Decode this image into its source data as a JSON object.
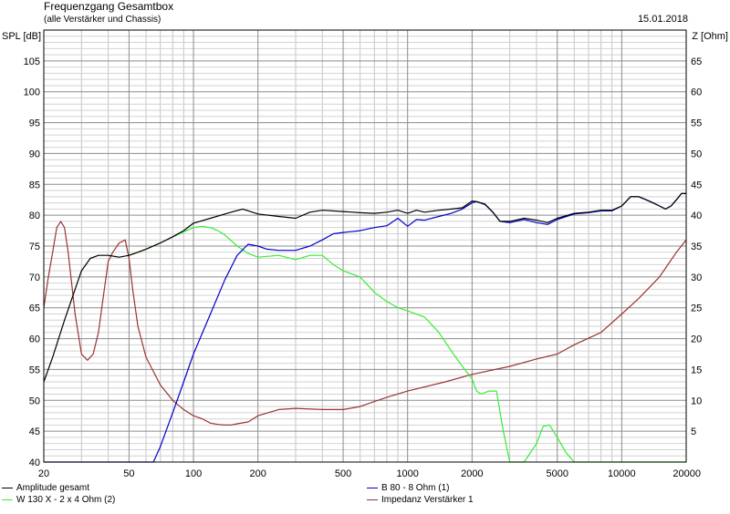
{
  "header": {
    "title": "Frequenzgang Gesamtbox",
    "subtitle": "(alle Verstärker und Chassis)",
    "date": "15.01.2018"
  },
  "chart_data": {
    "type": "line",
    "x_scale": "log",
    "xlim": [
      20,
      20000
    ],
    "ylim_left": [
      40,
      110
    ],
    "ylim_right": [
      0,
      70
    ],
    "ylabel_left": "SPL [dB]",
    "ylabel_right": "Z [Ohm]",
    "x_ticks": [
      20,
      50,
      100,
      200,
      500,
      1000,
      2000,
      5000,
      10000,
      20000
    ],
    "x_tick_labels": [
      "20",
      "50",
      "100",
      "200",
      "500",
      "1000",
      "2000",
      "5000",
      "10000",
      "20000"
    ],
    "y_ticks_left": [
      40,
      45,
      50,
      55,
      60,
      65,
      70,
      75,
      80,
      85,
      90,
      95,
      100,
      105
    ],
    "y_ticks_right": [
      5,
      10,
      15,
      20,
      25,
      30,
      35,
      40,
      45,
      50,
      55,
      60,
      65
    ],
    "grid": true,
    "legend_placement": "bottom",
    "series": [
      {
        "name": "Amplitude gesamt",
        "color": "#000000",
        "axis": "left",
        "x": [
          20,
          22,
          25,
          28,
          30,
          33,
          36,
          40,
          45,
          50,
          55,
          60,
          70,
          80,
          90,
          100,
          120,
          150,
          170,
          200,
          250,
          300,
          350,
          400,
          500,
          600,
          700,
          800,
          900,
          1000,
          1100,
          1200,
          1400,
          1600,
          1800,
          2000,
          2100,
          2300,
          2500,
          2700,
          3000,
          3500,
          4000,
          4500,
          5000,
          6000,
          7000,
          8000,
          9000,
          10000,
          11000,
          12000,
          13000,
          14000,
          15000,
          16000,
          17000,
          18000,
          19000,
          20000
        ],
        "y": [
          53,
          57,
          63,
          68,
          71,
          73,
          73.5,
          73.5,
          73.2,
          73.5,
          74,
          74.5,
          75.5,
          76.5,
          77.5,
          78.7,
          79.5,
          80.5,
          81,
          80.2,
          79.8,
          79.5,
          80.5,
          80.8,
          80.6,
          80.4,
          80.3,
          80.5,
          80.8,
          80.3,
          80.8,
          80.5,
          80.8,
          81,
          81.2,
          82.3,
          82.2,
          81.8,
          80.5,
          79,
          79,
          79.5,
          79.2,
          78.8,
          79.5,
          80.3,
          80.5,
          80.8,
          80.8,
          81.5,
          83,
          83,
          82.5,
          82,
          81.5,
          81,
          81.5,
          82.5,
          83.5,
          83.5
        ]
      },
      {
        "name": "B 80 - 8 Ohm (1)",
        "color": "#0000cc",
        "axis": "left",
        "x": [
          20,
          65,
          70,
          80,
          90,
          100,
          120,
          140,
          160,
          180,
          200,
          220,
          250,
          300,
          350,
          400,
          450,
          500,
          600,
          700,
          800,
          900,
          1000,
          1100,
          1200,
          1400,
          1600,
          1800,
          2000,
          2100,
          2300,
          2500,
          2700,
          3000,
          3500,
          4000,
          4500,
          5000,
          6000,
          7000,
          8000,
          9000,
          10000,
          11000,
          12000,
          13000,
          14000,
          15000,
          16000,
          17000,
          18000,
          19000,
          20000
        ],
        "y": [
          40,
          40,
          42.5,
          48,
          53,
          57.5,
          64,
          69.5,
          73.5,
          75.3,
          75,
          74.5,
          74.3,
          74.3,
          75,
          76,
          77,
          77.2,
          77.5,
          78,
          78.3,
          79.5,
          78.2,
          79.3,
          79.2,
          79.8,
          80.3,
          81,
          82,
          82.2,
          81.7,
          80.5,
          79,
          78.8,
          79.3,
          78.8,
          78.5,
          79.3,
          80.2,
          80.4,
          80.7,
          80.7,
          81.5,
          83,
          83,
          82.5,
          82,
          81.5,
          81,
          81.5,
          82.5,
          83.5,
          83.5
        ]
      },
      {
        "name": "W 130 X - 2 x 4 Ohm (2)",
        "color": "#33ee33",
        "axis": "left",
        "x": [
          50,
          60,
          70,
          80,
          90,
          100,
          110,
          120,
          130,
          140,
          160,
          180,
          200,
          250,
          300,
          350,
          400,
          450,
          500,
          600,
          700,
          800,
          900,
          1000,
          1200,
          1400,
          1600,
          1800,
          2000,
          2100,
          2200,
          2400,
          2600,
          2800,
          3000,
          3500,
          4000,
          4300,
          4600,
          5000,
          5500,
          6000,
          8000,
          10000,
          15000,
          20000
        ],
        "y": [
          73.5,
          74.5,
          75.5,
          76.5,
          77.3,
          78,
          78.2,
          78,
          77.5,
          76.8,
          75,
          73.8,
          73.2,
          73.5,
          72.8,
          73.5,
          73.5,
          72,
          71,
          70,
          67.5,
          66,
          65,
          64.5,
          63.5,
          61,
          58,
          55.5,
          53.5,
          51.5,
          51,
          51.5,
          51.5,
          45,
          40,
          40,
          43,
          45.8,
          46,
          44,
          41.5,
          40,
          40,
          40,
          40,
          40
        ]
      },
      {
        "name": "Impedanz Verstärker 1",
        "color": "#993333",
        "axis": "right",
        "x": [
          20,
          21,
          22,
          23,
          24,
          25,
          26,
          28,
          30,
          32,
          34,
          36,
          38,
          40,
          42,
          45,
          48,
          50,
          52,
          55,
          60,
          70,
          80,
          90,
          100,
          110,
          120,
          130,
          140,
          150,
          160,
          180,
          200,
          250,
          300,
          400,
          500,
          600,
          700,
          800,
          1000,
          1500,
          2000,
          3000,
          4000,
          5000,
          6000,
          8000,
          10000,
          12000,
          15000,
          18000,
          20000
        ],
        "y": [
          25,
          30,
          34,
          38,
          39,
          38,
          34,
          24,
          17.5,
          16.5,
          17.5,
          21,
          27,
          32.5,
          34,
          35.5,
          36,
          33,
          28,
          22,
          17,
          12.5,
          10,
          8.5,
          7.5,
          7,
          6.3,
          6.1,
          6,
          6,
          6.2,
          6.5,
          7.5,
          8.5,
          8.7,
          8.5,
          8.5,
          9,
          9.8,
          10.5,
          11.5,
          13,
          14.2,
          15.5,
          16.7,
          17.5,
          19,
          21,
          24,
          26.5,
          30,
          34,
          36
        ]
      }
    ]
  },
  "legend": [
    {
      "label": "Amplitude gesamt",
      "color": "#000000"
    },
    {
      "label": "B 80 - 8 Ohm (1)",
      "color": "#0000cc"
    },
    {
      "label": "W 130 X - 2 x 4 Ohm (2)",
      "color": "#33ee33"
    },
    {
      "label": "Impedanz Verstärker 1",
      "color": "#993333"
    }
  ]
}
